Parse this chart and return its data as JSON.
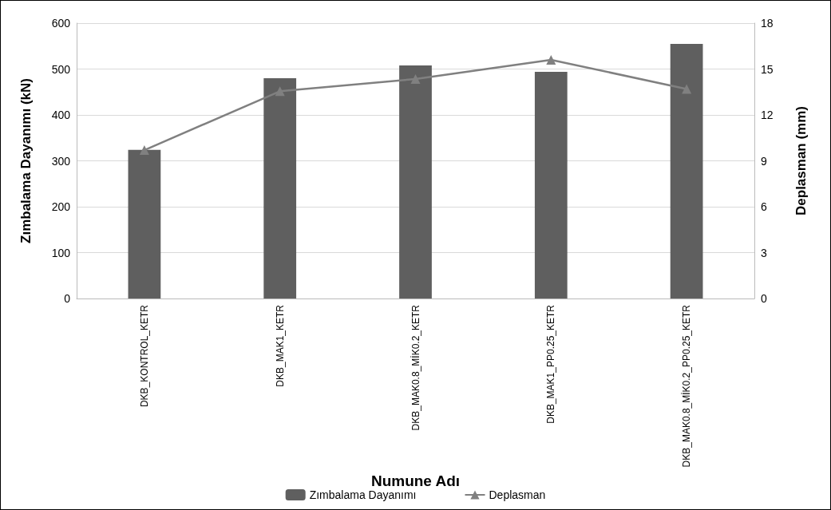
{
  "chart_data": {
    "type": "bar",
    "xlabel": "Numune Adı",
    "ylabel": "Zımbalama Dayanımı (kN)",
    "y2label": "Deplasman (mm)",
    "categories": [
      "DKB_KONTROL_KETR",
      "DKB_MAK1_KETR",
      "DKB_MAK0.8_MİK0.2_KETR",
      "DKB_MAK1_PP0.25_KETR",
      "DKB_MAK0.8_MİK0.2_PP0.25_KETR"
    ],
    "series": [
      {
        "name": "Zımbalama Dayanımı",
        "color": "#5f5f5f",
        "values": [
          324,
          480,
          508,
          494,
          555
        ]
      },
      {
        "name": "Deplasman",
        "type": "line",
        "axis": "y2",
        "color": "#808080",
        "marker": "triangle",
        "values": [
          9.7,
          13.55,
          14.35,
          15.6,
          13.7
        ]
      }
    ],
    "ylim": [
      0,
      600
    ],
    "yticks": [
      0,
      100,
      200,
      300,
      400,
      500,
      600
    ],
    "y2lim": [
      0,
      18
    ],
    "y2ticks": [
      0,
      3,
      6,
      9,
      12,
      15,
      18
    ],
    "grid": "y",
    "legend": "bottom"
  }
}
